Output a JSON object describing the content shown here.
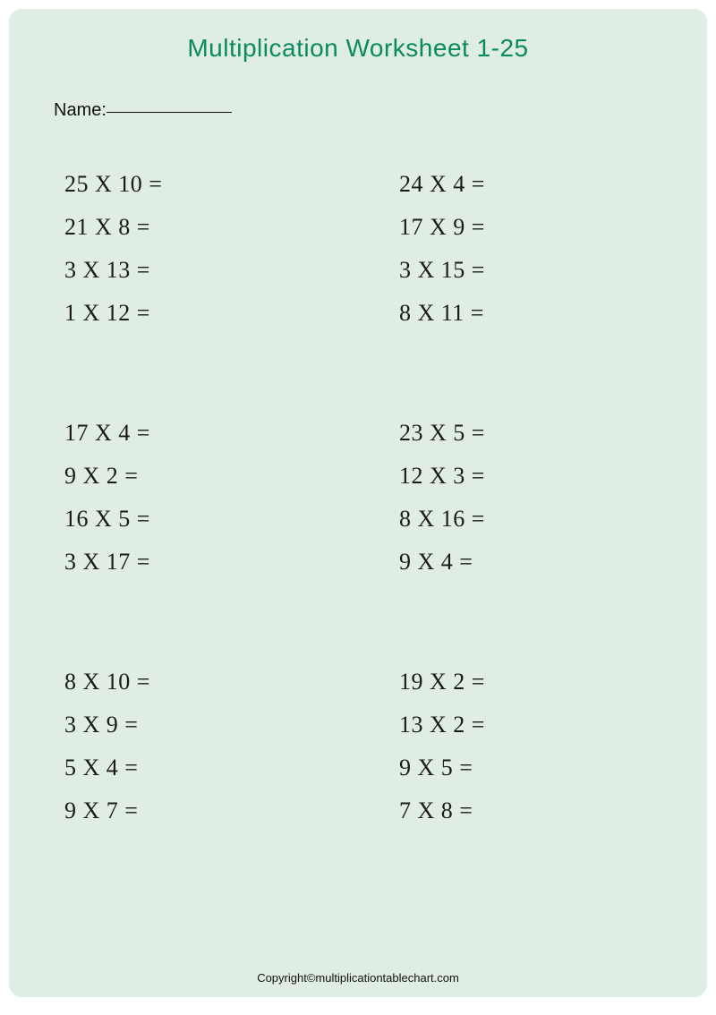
{
  "title": "Multiplication Worksheet 1-25",
  "name_label": "Name:",
  "copyright": "Copyright©multiplicationtablechart.com",
  "colors": {
    "page_bg": "#ffffff",
    "sheet_bg": "#e0ede4",
    "title_color": "#0a8a5f",
    "text_color": "#1a1a1a"
  },
  "typography": {
    "title_fontsize": 28,
    "title_family": "Century Gothic",
    "name_fontsize": 20,
    "problem_fontsize": 26,
    "problem_family": "Georgia",
    "copyright_fontsize": 13
  },
  "layout": {
    "sheet_radius": 14,
    "columns": 2,
    "groups": 3,
    "rows_per_group": 4,
    "problem_line_gap": 22,
    "group_gap": 86
  },
  "groups": [
    {
      "left": [
        {
          "a": 25,
          "b": 10
        },
        {
          "a": 21,
          "b": 8
        },
        {
          "a": 3,
          "b": 13
        },
        {
          "a": 1,
          "b": 12
        }
      ],
      "right": [
        {
          "a": 24,
          "b": 4
        },
        {
          "a": 17,
          "b": 9
        },
        {
          "a": 3,
          "b": 15
        },
        {
          "a": 8,
          "b": 11
        }
      ]
    },
    {
      "left": [
        {
          "a": 17,
          "b": 4
        },
        {
          "a": 9,
          "b": 2
        },
        {
          "a": 16,
          "b": 5
        },
        {
          "a": 3,
          "b": 17
        }
      ],
      "right": [
        {
          "a": 23,
          "b": 5
        },
        {
          "a": 12,
          "b": 3
        },
        {
          "a": 8,
          "b": 16
        },
        {
          "a": 9,
          "b": 4
        }
      ]
    },
    {
      "left": [
        {
          "a": 8,
          "b": 10
        },
        {
          "a": 3,
          "b": 9
        },
        {
          "a": 5,
          "b": 4
        },
        {
          "a": 9,
          "b": 7
        }
      ],
      "right": [
        {
          "a": 19,
          "b": 2
        },
        {
          "a": 13,
          "b": 2
        },
        {
          "a": 9,
          "b": 5
        },
        {
          "a": 7,
          "b": 8
        }
      ]
    }
  ]
}
